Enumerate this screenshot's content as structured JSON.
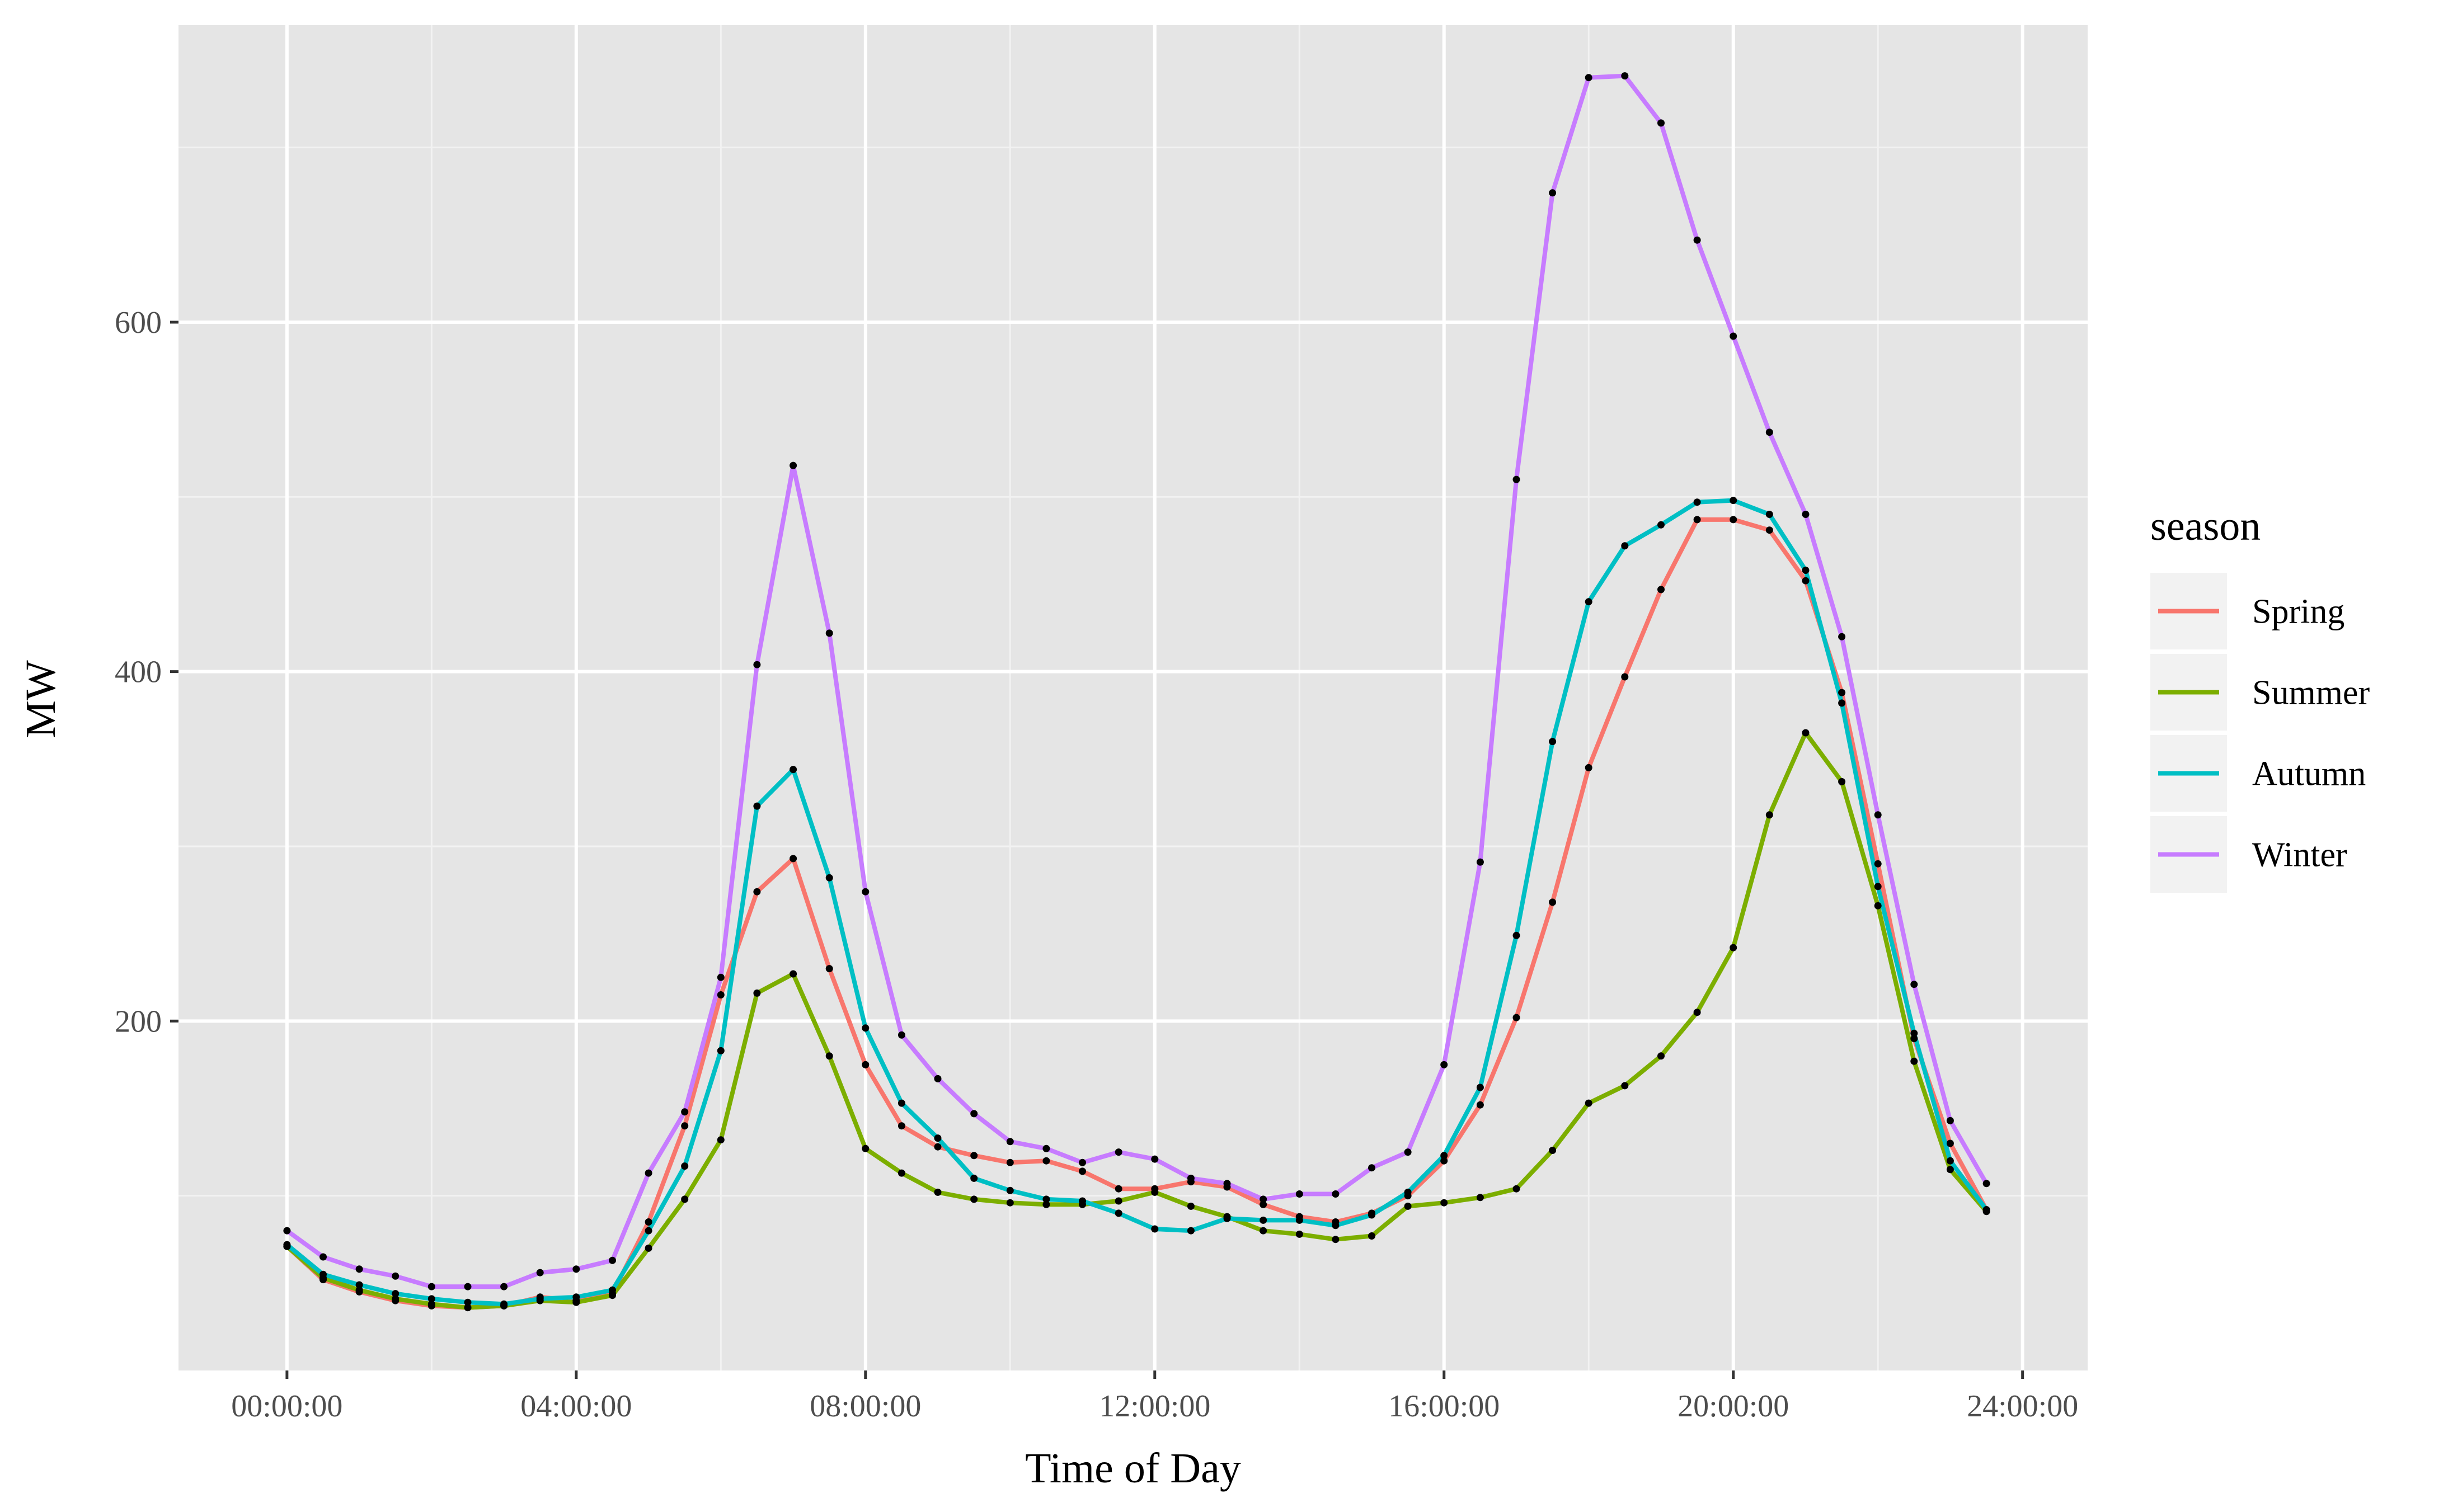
{
  "chart_data": {
    "type": "line",
    "title": "",
    "xlabel": "Time of Day",
    "ylabel": "MW",
    "x_unit": "hours",
    "xlim": [
      -1.5,
      24.9
    ],
    "ylim": [
      0,
      770
    ],
    "x_ticks": [
      0,
      4,
      8,
      12,
      16,
      20,
      24
    ],
    "x_tick_labels": [
      "00:00:00",
      "04:00:00",
      "08:00:00",
      "12:00:00",
      "16:00:00",
      "20:00:00",
      "24:00:00"
    ],
    "y_ticks": [
      200,
      400,
      600
    ],
    "y_tick_labels": [
      "200",
      "400",
      "600"
    ],
    "grid": true,
    "legend": {
      "title": "season",
      "position": "right"
    },
    "point_color": "#000000",
    "panel_background": "#e5e5e5",
    "x": [
      0,
      0.5,
      1,
      1.5,
      2,
      2.5,
      3,
      3.5,
      4,
      4.5,
      5,
      5.5,
      6,
      6.5,
      7,
      7.5,
      8,
      8.5,
      9,
      9.5,
      10,
      10.5,
      11,
      11.5,
      12,
      12.5,
      13,
      13.5,
      14,
      14.5,
      15,
      15.5,
      16,
      16.5,
      17,
      17.5,
      18,
      18.5,
      19,
      19.5,
      20,
      20.5,
      21,
      21.5,
      22,
      22.5,
      23,
      23.5
    ],
    "series": [
      {
        "name": "Spring",
        "color": "#f8766d",
        "values": [
          71,
          52,
          45,
          40,
          37,
          36,
          37,
          42,
          40,
          44,
          85,
          140,
          215,
          274,
          293,
          230,
          175,
          140,
          128,
          123,
          119,
          120,
          114,
          104,
          104,
          108,
          105,
          95,
          88,
          85,
          90,
          100,
          120,
          152,
          202,
          268,
          345,
          397,
          447,
          487,
          487,
          481,
          452,
          388,
          290,
          190,
          130,
          92
        ]
      },
      {
        "name": "Summer",
        "color": "#7cae00",
        "values": [
          71,
          53,
          46,
          41,
          38,
          36,
          37,
          40,
          39,
          43,
          70,
          98,
          132,
          216,
          227,
          180,
          127,
          113,
          102,
          98,
          96,
          95,
          95,
          97,
          102,
          94,
          88,
          80,
          78,
          75,
          77,
          94,
          96,
          99,
          104,
          126,
          153,
          163,
          180,
          205,
          242,
          318,
          365,
          337,
          266,
          177,
          115,
          91
        ]
      },
      {
        "name": "Autumn",
        "color": "#00bfc4",
        "values": [
          72,
          55,
          49,
          44,
          41,
          39,
          38,
          41,
          42,
          46,
          80,
          117,
          183,
          323,
          344,
          282,
          196,
          153,
          133,
          110,
          103,
          98,
          97,
          90,
          81,
          80,
          87,
          86,
          86,
          83,
          89,
          102,
          123,
          162,
          249,
          360,
          440,
          472,
          484,
          497,
          498,
          490,
          458,
          382,
          277,
          193,
          120,
          92
        ]
      },
      {
        "name": "Winter",
        "color": "#c77cff",
        "values": [
          80,
          65,
          58,
          54,
          48,
          48,
          48,
          56,
          58,
          63,
          113,
          148,
          225,
          404,
          518,
          422,
          274,
          192,
          167,
          147,
          131,
          127,
          119,
          125,
          121,
          110,
          107,
          98,
          101,
          101,
          116,
          125,
          175,
          291,
          510,
          674,
          740,
          741,
          714,
          647,
          592,
          537,
          490,
          420,
          318,
          221,
          143,
          107
        ]
      }
    ]
  }
}
